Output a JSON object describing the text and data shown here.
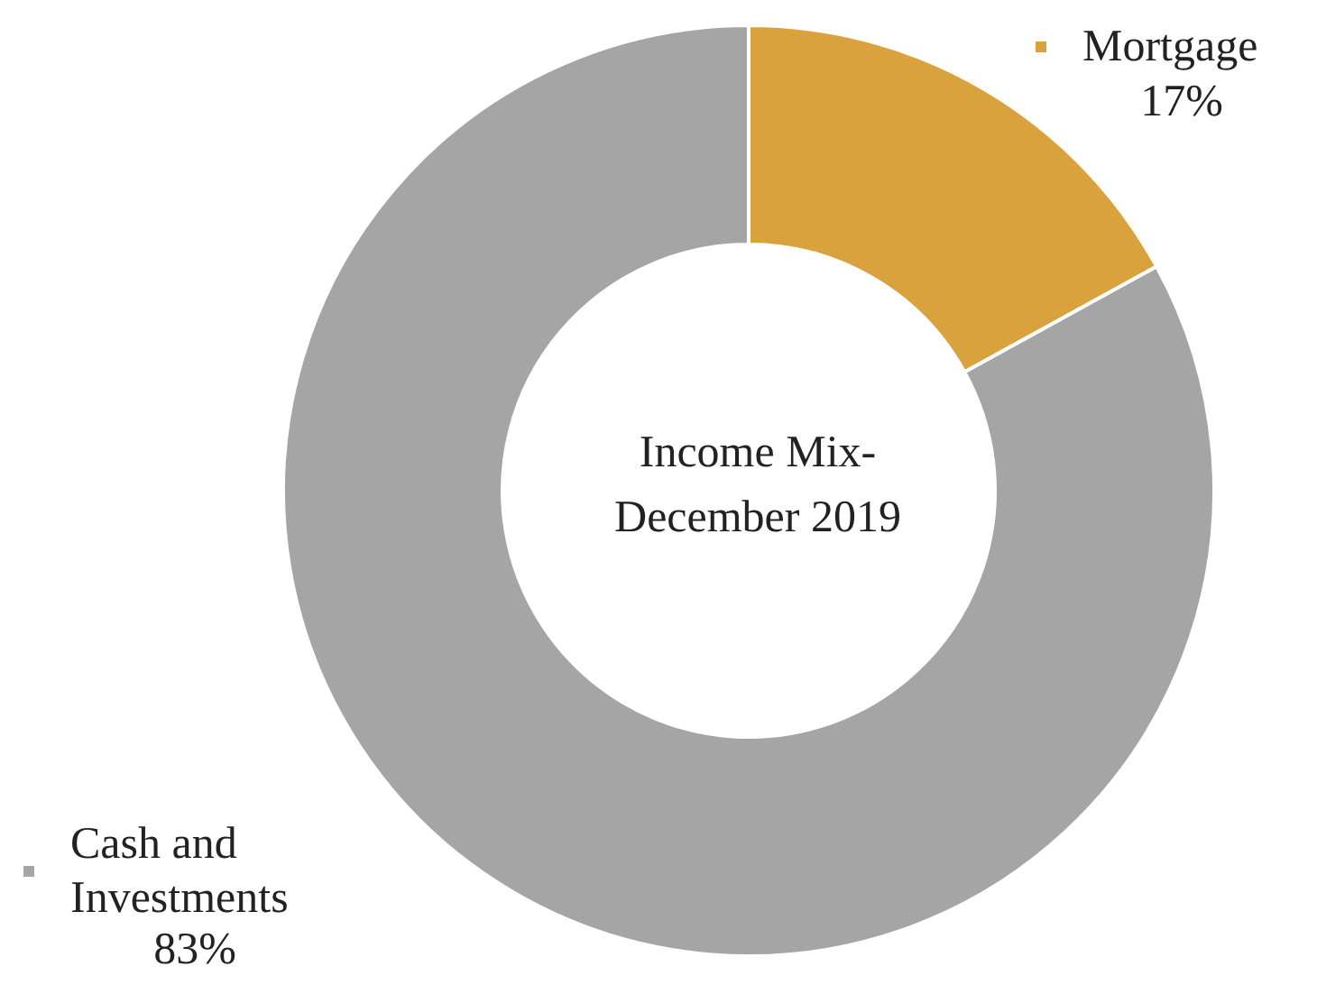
{
  "chart_data": {
    "type": "donut",
    "title": "Income Mix-December 2019",
    "categories": [
      "Mortgage",
      "Cash and Investments"
    ],
    "values": [
      17,
      83
    ],
    "colors": [
      "#d9a23c",
      "#a5a5a5"
    ],
    "value_labels": [
      "17%",
      "83%"
    ],
    "legend": "left"
  }
}
